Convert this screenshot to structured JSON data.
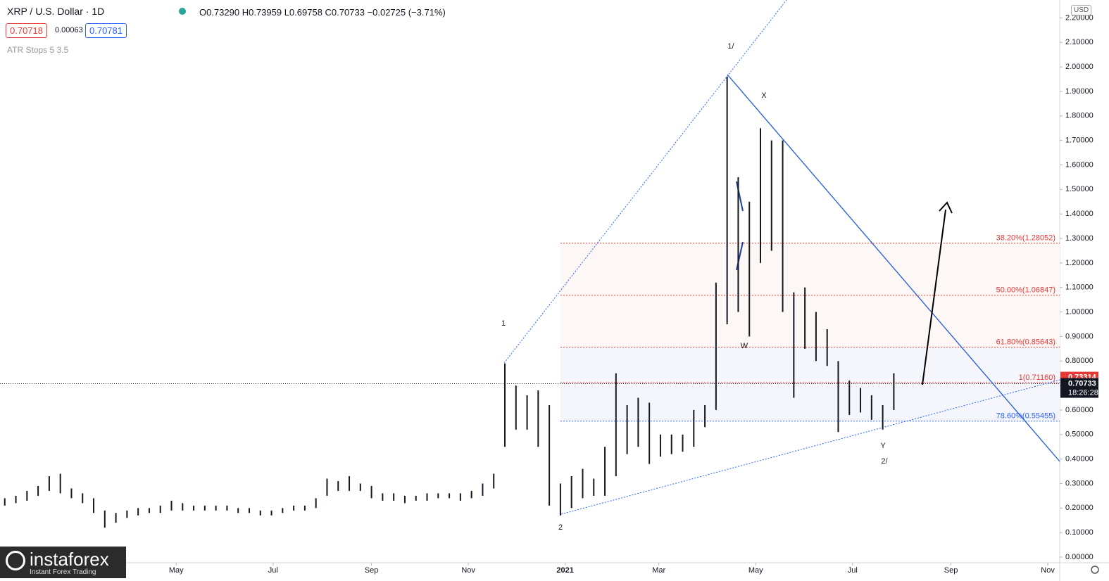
{
  "header": {
    "symbol": "XRP / U.S. Dollar · 1D",
    "ohlc": "O0.73290 H0.73959 L0.69758 C0.70733 −0.02725 (−3.71%)",
    "bid": "0.70718",
    "spread": "0.00063",
    "ask": "0.70781",
    "indicator": "ATR Stops 5 3.5",
    "currency": "USD"
  },
  "chart_data": {
    "type": "ohlc",
    "color": "#131722",
    "x": [
      13,
      20,
      27,
      34,
      41,
      48,
      55,
      62,
      69,
      76,
      83,
      90,
      97,
      104,
      111,
      118,
      125,
      132,
      139,
      146,
      153,
      160,
      167,
      174,
      181,
      188,
      195,
      202,
      209,
      216,
      223,
      230,
      237,
      244,
      251,
      258,
      265,
      272,
      279,
      286,
      293,
      300,
      307,
      314,
      321,
      328,
      335,
      342,
      349,
      356,
      363,
      370,
      377,
      384,
      391,
      398,
      405,
      412,
      419,
      426,
      433,
      440,
      447,
      454,
      461,
      468,
      475,
      482,
      489,
      496,
      503,
      510,
      517,
      524,
      531,
      538,
      545,
      552,
      559,
      566,
      573
    ],
    "high": [
      0.24,
      0.25,
      0.27,
      0.29,
      0.33,
      0.34,
      0.28,
      0.26,
      0.24,
      0.19,
      0.18,
      0.19,
      0.2,
      0.2,
      0.21,
      0.23,
      0.22,
      0.21,
      0.21,
      0.21,
      0.21,
      0.2,
      0.2,
      0.19,
      0.19,
      0.2,
      0.21,
      0.21,
      0.24,
      0.32,
      0.31,
      0.33,
      0.3,
      0.29,
      0.26,
      0.26,
      0.25,
      0.25,
      0.26,
      0.26,
      0.26,
      0.26,
      0.27,
      0.3,
      0.34,
      0.79,
      0.7,
      0.66,
      0.68,
      0.62,
      0.3,
      0.33,
      0.36,
      0.32,
      0.45,
      0.75,
      0.62,
      0.65,
      0.63,
      0.5,
      0.5,
      0.5,
      0.6,
      0.62,
      1.12,
      1.96,
      1.55,
      1.45,
      1.75,
      1.7,
      1.7,
      1.08,
      1.1,
      1.0,
      0.93,
      0.8,
      0.72,
      0.69,
      0.66,
      0.62,
      0.75
    ],
    "low": [
      0.21,
      0.22,
      0.23,
      0.25,
      0.27,
      0.26,
      0.24,
      0.22,
      0.18,
      0.12,
      0.14,
      0.16,
      0.17,
      0.18,
      0.18,
      0.19,
      0.19,
      0.19,
      0.19,
      0.19,
      0.19,
      0.18,
      0.18,
      0.17,
      0.17,
      0.18,
      0.19,
      0.19,
      0.2,
      0.25,
      0.27,
      0.27,
      0.27,
      0.24,
      0.23,
      0.23,
      0.22,
      0.23,
      0.23,
      0.24,
      0.24,
      0.23,
      0.24,
      0.25,
      0.28,
      0.45,
      0.52,
      0.52,
      0.45,
      0.21,
      0.17,
      0.2,
      0.24,
      0.25,
      0.25,
      0.33,
      0.42,
      0.45,
      0.38,
      0.41,
      0.42,
      0.43,
      0.45,
      0.53,
      0.6,
      0.95,
      1.0,
      0.9,
      1.2,
      1.25,
      1.0,
      0.65,
      0.85,
      0.8,
      0.78,
      0.51,
      0.58,
      0.59,
      0.56,
      0.52,
      0.6
    ],
    "xlim": [
      10,
      677.5
    ],
    "xticks": [
      {
        "value": 121,
        "label": "May"
      },
      {
        "value": 182,
        "label": "Jul"
      },
      {
        "value": 244,
        "label": "Sep"
      },
      {
        "value": 305,
        "label": "Nov"
      },
      {
        "value": 366,
        "label": "2021"
      },
      {
        "value": 425,
        "label": "Mar"
      },
      {
        "value": 486,
        "label": "May"
      },
      {
        "value": 547,
        "label": "Jul"
      },
      {
        "value": 609,
        "label": "Sep"
      },
      {
        "value": 670,
        "label": "Nov"
      }
    ],
    "ylim": [
      -0.023,
      2.273
    ],
    "yticks": [
      {
        "value": 0,
        "label": "0.00000"
      },
      {
        "value": 0.1,
        "label": "0.10000"
      },
      {
        "value": 0.2,
        "label": "0.20000"
      },
      {
        "value": 0.3,
        "label": "0.30000"
      },
      {
        "value": 0.4,
        "label": "0.40000"
      },
      {
        "value": 0.5,
        "label": "0.50000"
      },
      {
        "value": 0.6,
        "label": "0.60000"
      },
      {
        "value": 0.7,
        "label": "0.70000"
      },
      {
        "value": 0.8,
        "label": "0.80000"
      },
      {
        "value": 0.9,
        "label": "0.90000"
      },
      {
        "value": 1.0,
        "label": "1.00000"
      },
      {
        "value": 1.1,
        "label": "1.10000"
      },
      {
        "value": 1.2,
        "label": "1.20000"
      },
      {
        "value": 1.3,
        "label": "1.30000"
      },
      {
        "value": 1.4,
        "label": "1.40000"
      },
      {
        "value": 1.5,
        "label": "1.50000"
      },
      {
        "value": 1.6,
        "label": "1.60000"
      },
      {
        "value": 1.7,
        "label": "1.70000"
      },
      {
        "value": 1.8,
        "label": "1.80000"
      },
      {
        "value": 1.9,
        "label": "1.90000"
      },
      {
        "value": 2.0,
        "label": "2.00000"
      },
      {
        "value": 2.1,
        "label": "2.10000"
      },
      {
        "value": 2.2,
        "label": "2.20000"
      }
    ],
    "levels": [
      {
        "value": 1.28052,
        "label": "38.20%(1.28052)",
        "color": "#e53935"
      },
      {
        "value": 1.06847,
        "label": "50.00%(1.06847)",
        "color": "#e53935"
      },
      {
        "value": 0.85643,
        "label": "61.80%(0.85643)",
        "color": "#e53935"
      },
      {
        "value": 0.7116,
        "label": "1(0.71160)",
        "color": "#e53935"
      },
      {
        "value": 0.55455,
        "label": "78.60%(0.55455)",
        "color": "#2962ff"
      }
    ],
    "wave_labels": [
      "1",
      "2",
      "1/",
      "X",
      "W",
      "Y",
      "2/"
    ],
    "last_price": 0.70733,
    "high_tag": 0.73314,
    "countdown": "18:26:28"
  },
  "logo": {
    "name": "instaforex",
    "tagline": "Instant Forex Trading"
  }
}
